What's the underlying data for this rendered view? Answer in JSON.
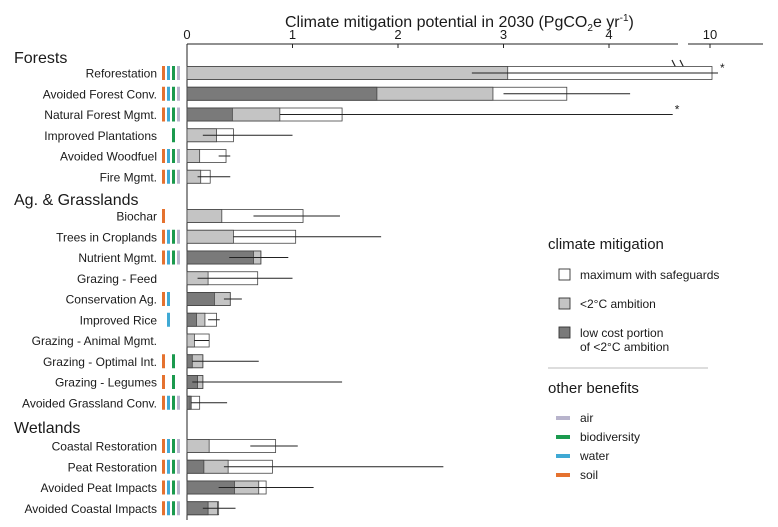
{
  "chart_data": {
    "type": "bar",
    "title_main": "Climate mitigation potential in 2030 (PgCO",
    "title_sub": "2",
    "title_mid": "e yr",
    "title_sup": "-1",
    "title_end": ")",
    "x_ticks": [
      {
        "label": "0",
        "value": 0
      },
      {
        "label": "1",
        "value": 1
      },
      {
        "label": "2",
        "value": 2
      },
      {
        "label": "3",
        "value": 3
      },
      {
        "label": "4",
        "value": 4
      },
      {
        "label": "10",
        "value": 10
      }
    ],
    "x_break_at": 4.6,
    "colors": {
      "low_cost": "#7a7a7a",
      "ambition": "#c4c4c4",
      "safeguard": "#ffffff",
      "air": "#b8b4cc",
      "biodiversity": "#1b9a4e",
      "water": "#3fa9d4",
      "soil": "#e5722f"
    },
    "groups": [
      {
        "name": "Forests",
        "rows": [
          {
            "label": "Reforestation",
            "low": 0,
            "amb": 3.04,
            "max": 10.1,
            "err": [
              2.7,
              10.4
            ],
            "star": true,
            "benefits": [
              "soil",
              "water",
              "biodiversity",
              "air"
            ]
          },
          {
            "label": "Avoided Forest Conv.",
            "low": 1.8,
            "amb": 2.9,
            "max": 3.6,
            "err": [
              3.0,
              4.2
            ],
            "star": false,
            "benefits": [
              "soil",
              "water",
              "biodiversity",
              "air"
            ]
          },
          {
            "label": "Natural Forest Mgmt.",
            "low": 0.43,
            "amb": 0.88,
            "max": 1.47,
            "err": [
              0.88,
              4.7
            ],
            "star": true,
            "benefits": [
              "soil",
              "water",
              "biodiversity",
              "air"
            ]
          },
          {
            "label": "Improved Plantations",
            "low": 0,
            "amb": 0.28,
            "max": 0.44,
            "err": [
              0.15,
              1.0
            ],
            "star": false,
            "benefits": [
              "biodiversity"
            ]
          },
          {
            "label": "Avoided Woodfuel",
            "low": 0,
            "amb": 0.12,
            "max": 0.37,
            "err": [
              0.3,
              0.41
            ],
            "star": false,
            "benefits": [
              "soil",
              "water",
              "biodiversity",
              "air"
            ]
          },
          {
            "label": "Fire Mgmt.",
            "low": 0,
            "amb": 0.13,
            "max": 0.22,
            "err": [
              0.1,
              0.41
            ],
            "star": false,
            "benefits": [
              "soil",
              "water",
              "biodiversity",
              "air"
            ]
          }
        ]
      },
      {
        "name": "Ag. & Grasslands",
        "rows": [
          {
            "label": "Biochar",
            "low": 0,
            "amb": 0.33,
            "max": 1.1,
            "err": [
              0.63,
              1.45
            ],
            "star": false,
            "benefits": [
              "soil"
            ]
          },
          {
            "label": "Trees in Croplands",
            "low": 0,
            "amb": 0.44,
            "max": 1.03,
            "err": [
              0.44,
              1.84
            ],
            "star": false,
            "benefits": [
              "soil",
              "water",
              "biodiversity",
              "air"
            ]
          },
          {
            "label": "Nutrient Mgmt.",
            "low": 0.63,
            "amb": 0.7,
            "max": 0.7,
            "err": [
              0.4,
              0.96
            ],
            "star": false,
            "benefits": [
              "soil",
              "water",
              "biodiversity",
              "air"
            ]
          },
          {
            "label": "Grazing - Feed",
            "low": 0,
            "amb": 0.2,
            "max": 0.67,
            "err": [
              0.1,
              1.0
            ],
            "star": false,
            "benefits": []
          },
          {
            "label": "Conservation Ag.",
            "low": 0.26,
            "amb": 0.41,
            "max": 0.41,
            "err": [
              0.35,
              0.52
            ],
            "star": false,
            "benefits": [
              "soil",
              "water"
            ]
          },
          {
            "label": "Improved Rice",
            "low": 0.09,
            "amb": 0.17,
            "max": 0.28,
            "err": [
              0.2,
              0.31
            ],
            "star": false,
            "benefits": [
              "water"
            ]
          },
          {
            "label": "Grazing - Animal Mgmt.",
            "low": 0,
            "amb": 0.07,
            "max": 0.21,
            "err": [
              0.07,
              0.21
            ],
            "star": false,
            "benefits": []
          },
          {
            "label": "Grazing - Optimal Int.",
            "low": 0.05,
            "amb": 0.15,
            "max": 0.15,
            "err": [
              0.05,
              0.68
            ],
            "star": false,
            "benefits": [
              "soil",
              "biodiversity"
            ]
          },
          {
            "label": "Grazing - Legumes",
            "low": 0.1,
            "amb": 0.15,
            "max": 0.15,
            "err": [
              0.05,
              1.47
            ],
            "star": false,
            "benefits": [
              "soil",
              "biodiversity"
            ]
          },
          {
            "label": "Avoided Grassland Conv.",
            "low": 0.03,
            "amb": 0.04,
            "max": 0.12,
            "err": [
              0.04,
              0.38
            ],
            "star": false,
            "benefits": [
              "soil",
              "water",
              "biodiversity",
              "air"
            ]
          }
        ]
      },
      {
        "name": "Wetlands",
        "rows": [
          {
            "label": "Coastal Restoration",
            "low": 0,
            "amb": 0.21,
            "max": 0.84,
            "err": [
              0.6,
              1.05
            ],
            "star": false,
            "benefits": [
              "soil",
              "water",
              "biodiversity",
              "air"
            ]
          },
          {
            "label": "Peat Restoration",
            "low": 0.16,
            "amb": 0.39,
            "max": 0.81,
            "err": [
              0.35,
              2.43
            ],
            "star": false,
            "benefits": [
              "soil",
              "water",
              "biodiversity",
              "air"
            ]
          },
          {
            "label": "Avoided Peat Impacts",
            "low": 0.45,
            "amb": 0.68,
            "max": 0.75,
            "err": [
              0.3,
              1.2
            ],
            "star": false,
            "benefits": [
              "soil",
              "water",
              "biodiversity",
              "air"
            ]
          },
          {
            "label": "Avoided Coastal Impacts",
            "low": 0.2,
            "amb": 0.29,
            "max": 0.3,
            "err": [
              0.15,
              0.46
            ],
            "star": false,
            "benefits": [
              "soil",
              "water",
              "biodiversity",
              "air"
            ]
          }
        ]
      }
    ],
    "star_symbol": "*",
    "legend": {
      "mitigation_title": "climate mitigation",
      "mitigation_items": [
        {
          "key": "safeguard",
          "label_lines": [
            "maximum with safeguards"
          ]
        },
        {
          "key": "ambition",
          "label_lines": [
            "<2°C ambition"
          ]
        },
        {
          "key": "low_cost",
          "label_lines": [
            "low cost portion",
            "of <2°C ambition"
          ]
        }
      ],
      "benefits_title": "other benefits",
      "benefit_items": [
        {
          "key": "air",
          "label": "air"
        },
        {
          "key": "biodiversity",
          "label": "biodiversity"
        },
        {
          "key": "water",
          "label": "water"
        },
        {
          "key": "soil",
          "label": "soil"
        }
      ]
    }
  }
}
